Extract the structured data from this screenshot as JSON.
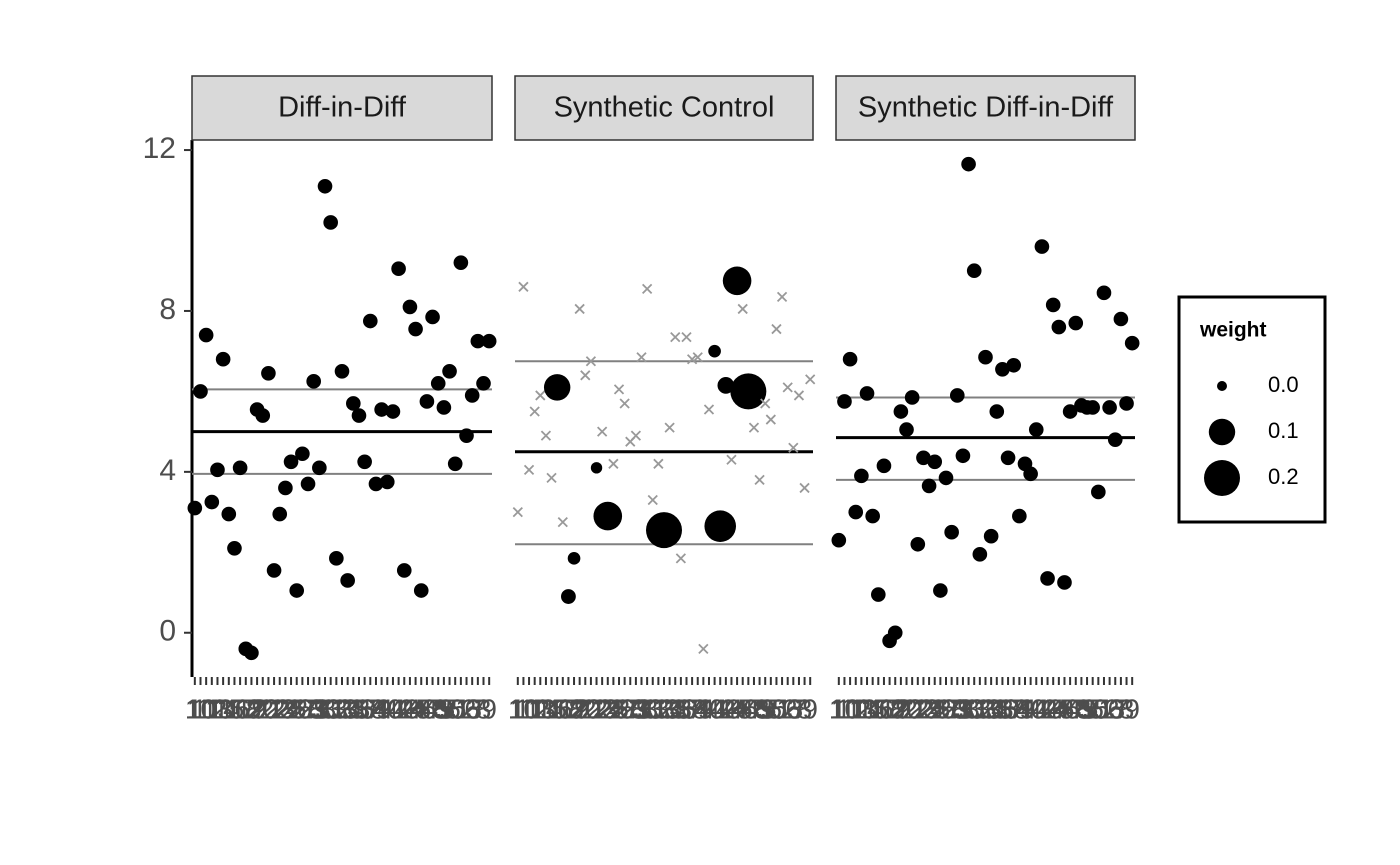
{
  "chart_data": {
    "type": "scatter",
    "ylim": [
      -1.1,
      12.25
    ],
    "yticks": [
      0,
      4,
      8,
      12
    ],
    "categories": [
      "1",
      "10",
      "11",
      "12",
      "13",
      "14",
      "15",
      "16",
      "17",
      "18",
      "19",
      "2",
      "20",
      "21",
      "22",
      "23",
      "24",
      "25",
      "26",
      "27",
      "28",
      "29",
      "3",
      "30",
      "31",
      "32",
      "33",
      "34",
      "35",
      "36",
      "37",
      "38",
      "39",
      "4",
      "40",
      "41",
      "42",
      "43",
      "44",
      "45",
      "46",
      "47",
      "48",
      "49",
      "5",
      "50",
      "51",
      "52",
      "53",
      "6",
      "7",
      "8",
      "9"
    ],
    "point_color": "#000000",
    "zero_weight_color": "#999999",
    "legend": {
      "title": "weight",
      "position": "right",
      "sizes": [
        {
          "value": 0,
          "label": "0.0"
        },
        0.1,
        0.2
      ]
    },
    "panels": [
      {
        "title": "Diff-in-Diff",
        "values": [
          3.1,
          6.0,
          7.4,
          3.25,
          4.05,
          6.8,
          2.95,
          2.1,
          4.1,
          -0.4,
          -0.5,
          5.55,
          5.4,
          6.45,
          1.55,
          2.95,
          3.6,
          4.25,
          1.05,
          4.45,
          3.7,
          6.25,
          4.1,
          11.1,
          10.2,
          1.85,
          6.5,
          1.3,
          5.7,
          5.4,
          4.25,
          7.75,
          3.7,
          5.55,
          3.75,
          5.5,
          9.05,
          1.55,
          8.1,
          7.55,
          1.05,
          5.75,
          7.85,
          6.2,
          5.6,
          6.5,
          4.2,
          9.2,
          4.9,
          5.9,
          7.25,
          6.2,
          7.25
        ],
        "weights": [
          0.019,
          0.019,
          0.019,
          0.019,
          0.019,
          0.019,
          0.019,
          0.019,
          0.019,
          0.019,
          0.019,
          0.019,
          0.019,
          0.019,
          0.019,
          0.019,
          0.019,
          0.019,
          0.019,
          0.019,
          0.019,
          0.019,
          0.019,
          0.019,
          0.019,
          0.019,
          0.019,
          0.019,
          0.019,
          0.019,
          0.019,
          0.019,
          0.019,
          0.019,
          0.019,
          0.019,
          0.019,
          0.019,
          0.019,
          0.019,
          0.019,
          0.019,
          0.019,
          0.019,
          0.019,
          0.019,
          0.019,
          0.019,
          0.019,
          0.019,
          0.019,
          0.019,
          0.019
        ],
        "hlines": [
          {
            "value": 6.05,
            "color": "#808080"
          },
          {
            "value": 5.0,
            "color": "#000000"
          },
          {
            "value": 3.95,
            "color": "#808080"
          }
        ]
      },
      {
        "title": "Synthetic Control",
        "values": [
          3.0,
          8.6,
          4.05,
          5.5,
          5.9,
          4.9,
          3.85,
          6.1,
          2.75,
          0.9,
          1.85,
          8.05,
          6.4,
          6.75,
          4.1,
          5.0,
          2.9,
          4.2,
          6.05,
          5.7,
          4.75,
          4.9,
          6.85,
          8.55,
          3.3,
          4.2,
          2.55,
          5.1,
          7.35,
          1.85,
          7.35,
          6.8,
          6.85,
          -0.4,
          5.55,
          7.0,
          2.65,
          6.15,
          4.3,
          8.75,
          8.05,
          6.0,
          5.1,
          3.8,
          5.7,
          5.3,
          7.55,
          8.35,
          6.1,
          4.6,
          5.9,
          3.6,
          6.3
        ],
        "weights": [
          0,
          0,
          0,
          0,
          0,
          0,
          0,
          0.1,
          0,
          0.02,
          0.01,
          0,
          0,
          0,
          0.005,
          0,
          0.12,
          0,
          0,
          0,
          0,
          0,
          0,
          0,
          0,
          0,
          0.2,
          0,
          0,
          0,
          0,
          0,
          0,
          0,
          0,
          0.01,
          0.15,
          0.03,
          0,
          0.12,
          0,
          0.2,
          0,
          0,
          0,
          0,
          0,
          0,
          0,
          0,
          0,
          0,
          0
        ],
        "hlines": [
          {
            "value": 6.75,
            "color": "#808080"
          },
          {
            "value": 4.5,
            "color": "#000000"
          },
          {
            "value": 2.2,
            "color": "#808080"
          }
        ]
      },
      {
        "title": "Synthetic Diff-in-Diff",
        "values": [
          2.3,
          5.75,
          6.8,
          3.0,
          3.9,
          5.95,
          2.9,
          0.95,
          4.15,
          -0.2,
          0.0,
          5.5,
          5.05,
          5.85,
          2.2,
          4.35,
          3.65,
          4.25,
          1.05,
          3.85,
          2.5,
          5.9,
          4.4,
          11.65,
          9.0,
          1.95,
          6.85,
          2.4,
          5.5,
          6.55,
          4.35,
          6.65,
          2.9,
          4.2,
          3.95,
          5.05,
          9.6,
          1.35,
          8.15,
          7.6,
          1.25,
          5.5,
          7.7,
          5.65,
          5.6,
          5.6,
          3.5,
          8.45,
          5.6,
          4.8,
          7.8,
          5.7,
          7.2
        ],
        "weights": [
          0.019,
          0.019,
          0.019,
          0.019,
          0.019,
          0.019,
          0.019,
          0.019,
          0.019,
          0.019,
          0.019,
          0.019,
          0.019,
          0.019,
          0.019,
          0.019,
          0.019,
          0.019,
          0.019,
          0.019,
          0.019,
          0.019,
          0.019,
          0.019,
          0.019,
          0.019,
          0.019,
          0.019,
          0.019,
          0.019,
          0.019,
          0.019,
          0.019,
          0.019,
          0.019,
          0.019,
          0.019,
          0.019,
          0.019,
          0.019,
          0.019,
          0.019,
          0.019,
          0.019,
          0.019,
          0.019,
          0.019,
          0.019,
          0.019,
          0.019,
          0.019,
          0.019,
          0.019
        ],
        "hlines": [
          {
            "value": 5.85,
            "color": "#808080"
          },
          {
            "value": 4.85,
            "color": "#000000"
          },
          {
            "value": 3.8,
            "color": "#808080"
          }
        ]
      }
    ]
  }
}
